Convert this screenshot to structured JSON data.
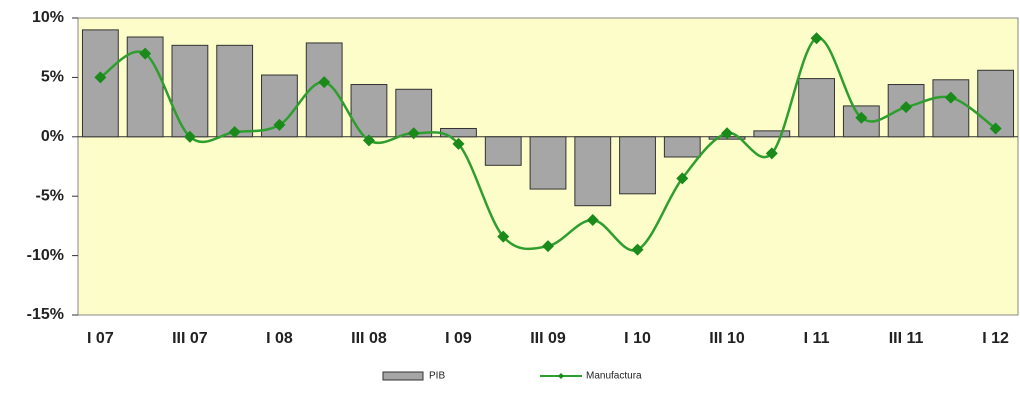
{
  "chart_data": {
    "type": "bar_line",
    "categories": [
      "I 07",
      null,
      "III 07",
      null,
      "I 08",
      null,
      "III 08",
      null,
      "I 09",
      null,
      "III 09",
      null,
      "I 10",
      null,
      "III 10",
      null,
      "I 11",
      null,
      "III 11",
      null,
      "I 12"
    ],
    "series": [
      {
        "name": "PIB",
        "type": "bar",
        "color": "#a6a6a6",
        "values": [
          9.0,
          8.4,
          7.7,
          7.7,
          5.2,
          7.9,
          4.4,
          4.0,
          0.7,
          -2.4,
          -4.4,
          -5.8,
          -4.8,
          -1.7,
          -0.2,
          0.5,
          4.9,
          2.6,
          4.4,
          4.8,
          5.6
        ]
      },
      {
        "name": "Manufactura",
        "type": "line",
        "color": "#2e9e2e",
        "values": [
          5.0,
          7.0,
          0.0,
          0.4,
          1.0,
          4.6,
          -0.3,
          0.3,
          -0.6,
          -8.4,
          -9.2,
          -7.0,
          -9.5,
          -3.5,
          0.3,
          -1.4,
          8.3,
          1.6,
          2.5,
          3.3,
          0.7
        ]
      }
    ],
    "ylim": [
      -15,
      10
    ],
    "yticks": [
      {
        "value": -15,
        "label": "-15%"
      },
      {
        "value": -10,
        "label": "-10%"
      },
      {
        "value": -5,
        "label": "-5%"
      },
      {
        "value": 0,
        "label": "0%"
      },
      {
        "value": 5,
        "label": "5%"
      },
      {
        "value": 10,
        "label": "10%"
      }
    ],
    "background": "#fdfdc9"
  }
}
